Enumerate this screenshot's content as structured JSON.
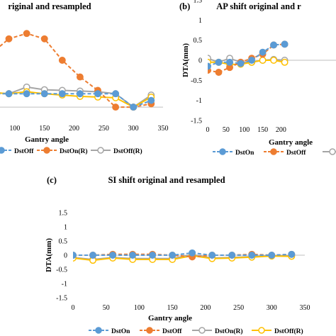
{
  "chart_data": [
    {
      "type": "line",
      "panel_label": "",
      "title": "riginal and resampled",
      "xlabel": "Gantry angle",
      "ylabel": "",
      "xlim": [
        75,
        350
      ],
      "ylim": [
        -0.2,
        1.6
      ],
      "x_ticks": [
        100,
        150,
        200,
        250,
        300,
        350
      ],
      "y_ticks": [],
      "series": [
        {
          "name": "DstOn",
          "color": "#5b9bd5",
          "dash": true,
          "marker": "circle",
          "x": [
            60,
            90,
            120,
            150,
            180,
            210,
            240,
            270,
            300,
            330
          ],
          "y": [
            0.2,
            0.2,
            0.2,
            0.2,
            0.2,
            0.2,
            0.2,
            0.2,
            0.0,
            0.1
          ]
        },
        {
          "name": "DstOff",
          "color": "#ed7d31",
          "dash": true,
          "marker": "circle",
          "x": [
            60,
            90,
            120,
            150,
            180,
            210,
            240,
            270,
            300,
            330
          ],
          "y": [
            0.8,
            1.02,
            1.1,
            1.02,
            0.7,
            0.45,
            0.25,
            0.0,
            0.0,
            0.05
          ]
        },
        {
          "name": "DstOn(R)",
          "color": "#a5a5a5",
          "dash": false,
          "marker": "circle",
          "x": [
            60,
            90,
            120,
            150,
            180,
            210,
            240,
            270,
            300,
            330
          ],
          "y": [
            0.22,
            0.2,
            0.3,
            0.26,
            0.25,
            0.24,
            0.23,
            0.2,
            0.0,
            0.18
          ]
        },
        {
          "name": "DstOff(R)",
          "color": "#ffc000",
          "dash": false,
          "marker": "circle",
          "x": [
            60,
            90,
            120,
            150,
            180,
            210,
            240,
            270,
            300,
            330
          ],
          "y": [
            0.22,
            0.2,
            0.23,
            0.2,
            0.18,
            0.16,
            0.15,
            0.14,
            0.0,
            0.15
          ]
        }
      ],
      "legend": [
        "DstOff",
        "DstOn(R)",
        "DstOff(R)"
      ]
    },
    {
      "type": "line",
      "panel_label": "(b)",
      "title": "AP shift original and r",
      "xlabel": "Gantry angle",
      "ylabel": "DTA(mm)",
      "xlim": [
        0,
        350
      ],
      "ylim": [
        -1.5,
        1.5
      ],
      "x_ticks": [
        0,
        50,
        100,
        150,
        200
      ],
      "y_ticks": [
        "1.5",
        "1",
        "0.5",
        "0",
        "-0.5",
        "-1",
        "-1.5"
      ],
      "series": [
        {
          "name": "DstOn",
          "color": "#5b9bd5",
          "dash": true,
          "marker": "circle",
          "x": [
            0,
            30,
            60,
            90,
            120,
            150,
            180,
            210
          ],
          "y": [
            -0.15,
            -0.05,
            -0.05,
            -0.08,
            0.0,
            0.2,
            0.38,
            0.4
          ]
        },
        {
          "name": "DstOff",
          "color": "#ed7d31",
          "dash": true,
          "marker": "circle",
          "x": [
            0,
            30,
            60,
            90,
            120,
            150,
            180,
            210
          ],
          "y": [
            -0.25,
            -0.3,
            -0.18,
            -0.05,
            0.05,
            0.15,
            0.38,
            0.4
          ]
        },
        {
          "name": "DstOn(R)",
          "color": "#a5a5a5",
          "dash": false,
          "marker": "circle",
          "x": [
            0,
            30,
            60,
            90,
            120,
            150,
            180,
            210
          ],
          "y": [
            0.05,
            -0.05,
            0.05,
            -0.05,
            -0.05,
            0.0,
            0.02,
            0.0
          ]
        },
        {
          "name": "DstOff(R)",
          "color": "#ffc000",
          "dash": false,
          "marker": "circle",
          "x": [
            0,
            30,
            60,
            90,
            120,
            150,
            180,
            210
          ],
          "y": [
            -0.05,
            -0.05,
            -0.1,
            -0.1,
            -0.05,
            0.0,
            0.0,
            -0.05
          ]
        }
      ],
      "legend": [
        "DstOn",
        "DstOff",
        ""
      ]
    },
    {
      "type": "line",
      "panel_label": "(c)",
      "title": "SI shift original and resampled",
      "xlabel": "Gantry angle",
      "ylabel": "DTA(mm)",
      "xlim": [
        0,
        350
      ],
      "ylim": [
        -1.5,
        1.5
      ],
      "x_ticks": [
        0,
        50,
        100,
        150,
        200,
        250,
        300,
        350
      ],
      "y_ticks": [
        "1.5",
        "1",
        "0.5",
        "0",
        "-0.5",
        "-1",
        "-1.5"
      ],
      "series": [
        {
          "name": "DstOn",
          "color": "#5b9bd5",
          "dash": true,
          "marker": "circle",
          "x": [
            0,
            30,
            60,
            90,
            120,
            150,
            180,
            210,
            240,
            270,
            300,
            330
          ],
          "y": [
            0.0,
            0.0,
            0.0,
            0.0,
            0.0,
            0.0,
            0.08,
            0.0,
            0.0,
            0.0,
            0.0,
            0.03
          ]
        },
        {
          "name": "DstOff",
          "color": "#ed7d31",
          "dash": true,
          "marker": "circle",
          "x": [
            0,
            30,
            60,
            90,
            120,
            150,
            180,
            210,
            240,
            270,
            300,
            330
          ],
          "y": [
            0.0,
            0.0,
            0.03,
            0.03,
            0.03,
            0.0,
            -0.06,
            0.0,
            0.0,
            0.03,
            0.0,
            0.03
          ]
        },
        {
          "name": "DstOn(R)",
          "color": "#a5a5a5",
          "dash": false,
          "marker": "circle",
          "x": [
            0,
            30,
            60,
            90,
            120,
            150,
            180,
            210,
            240,
            270,
            300,
            330
          ],
          "y": [
            -0.08,
            -0.15,
            -0.08,
            -0.12,
            -0.12,
            -0.12,
            0.02,
            -0.1,
            -0.08,
            -0.05,
            -0.02,
            -0.02
          ]
        },
        {
          "name": "DstOff(R)",
          "color": "#ffc000",
          "dash": false,
          "marker": "circle",
          "x": [
            0,
            30,
            60,
            90,
            120,
            150,
            180,
            210,
            240,
            270,
            300,
            330
          ],
          "y": [
            -0.1,
            -0.18,
            -0.1,
            -0.15,
            -0.15,
            -0.15,
            -0.02,
            -0.12,
            -0.1,
            -0.07,
            -0.03,
            -0.04
          ]
        }
      ],
      "legend": [
        "DstOn",
        "DstOff",
        "DstOn(R)",
        "DstOff(R)"
      ]
    }
  ]
}
